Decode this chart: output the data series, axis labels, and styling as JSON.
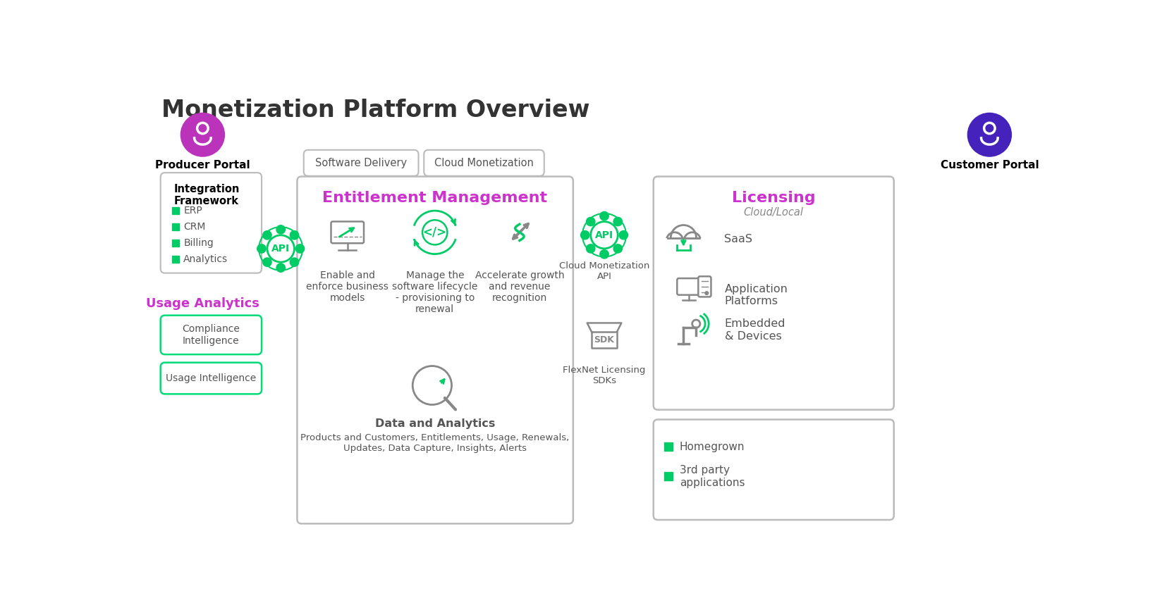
{
  "title": "Monetization Platform Overview",
  "title_color": "#333333",
  "title_fontsize": 24,
  "bg_color": "#ffffff",
  "green": "#00cc66",
  "purple": "#cc33cc",
  "dark_purple": "#4422bb",
  "gray_text": "#555555",
  "light_gray": "#888888",
  "box_border": "#bbbbbb",
  "green_border": "#00dd77",
  "producer_portal_label": "Producer Portal",
  "customer_portal_label": "Customer Portal",
  "integration_framework_title": "Integration\nFramework",
  "integration_items": [
    "ERP",
    "CRM",
    "Billing",
    "Analytics"
  ],
  "usage_analytics_label": "Usage Analytics",
  "compliance_box": "Compliance\nIntelligence",
  "usage_intelligence_box": "Usage Intelligence",
  "entitlement_title": "Entitlement Management",
  "em_items": [
    "Enable and\nenforce business\nmodels",
    "Manage the\nsoftware lifecycle\n- provisioning to\nrenewal",
    "Accelerate growth\nand revenue\nrecognition"
  ],
  "data_analytics_label": "Data and Analytics",
  "data_analytics_sub": "Products and Customers, Entitlements, Usage, Renewals,\nUpdates, Data Capture, Insights, Alerts",
  "software_delivery_label": "Software Delivery",
  "cloud_monetization_label": "Cloud Monetization",
  "cloud_monetization_api_label": "Cloud Monetization\nAPI",
  "flexnet_sdk_label": "FlexNet Licensing\nSDKs",
  "licensing_title": "Licensing",
  "licensing_sub": "Cloud/Local",
  "licensing_items": [
    "SaaS",
    "Application\nPlatforms",
    "Embedded\n& Devices"
  ],
  "homegrown_items": [
    "Homegrown",
    "3rd party\napplications"
  ]
}
